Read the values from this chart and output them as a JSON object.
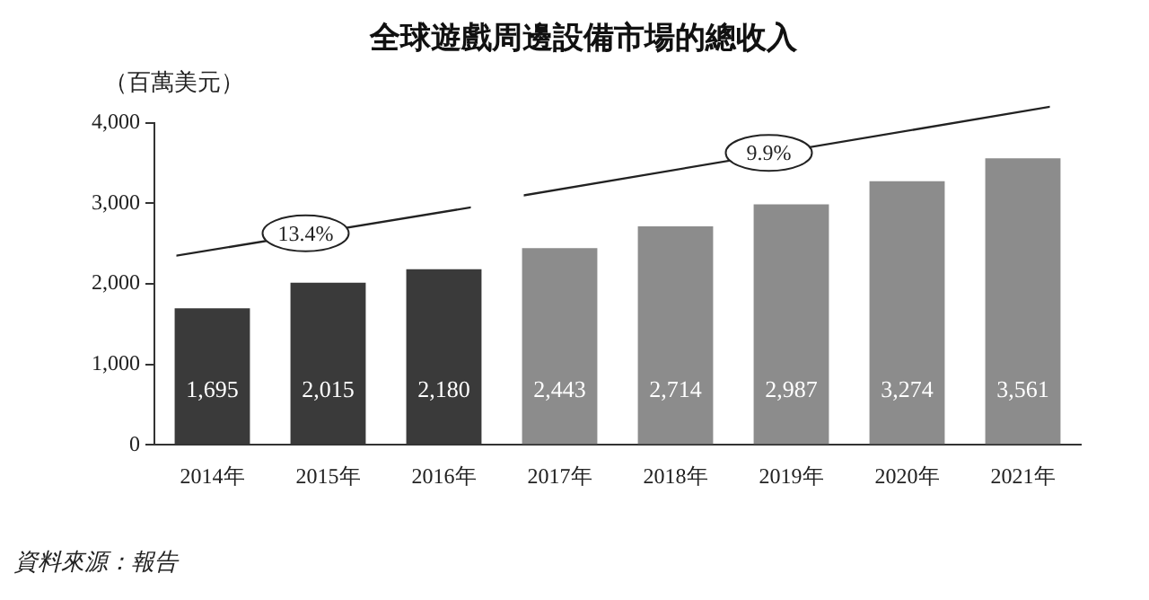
{
  "chart_data": {
    "type": "bar",
    "title": "全球遊戲周邊設備市場的總收入",
    "ylabel": "（百萬美元）",
    "categories": [
      "2014年",
      "2015年",
      "2016年",
      "2017年",
      "2018年",
      "2019年",
      "2020年",
      "2021年"
    ],
    "values": [
      1695,
      2015,
      2180,
      2443,
      2714,
      2987,
      3274,
      3561
    ],
    "colors": [
      "#3a3a3a",
      "#3a3a3a",
      "#3a3a3a",
      "#8c8c8c",
      "#8c8c8c",
      "#8c8c8c",
      "#8c8c8c",
      "#8c8c8c"
    ],
    "value_labels": [
      "1,695",
      "2,015",
      "2,180",
      "2,443",
      "2,714",
      "2,987",
      "3,274",
      "3,561"
    ],
    "ylim": [
      0,
      4000
    ],
    "yticks": [
      0,
      {
        "value": 1000,
        "label": "1,000"
      },
      {
        "value": 2000,
        "label": "2,000"
      },
      {
        "value": 3000,
        "label": "3,000"
      },
      {
        "value": 4000,
        "label": "4,000"
      }
    ],
    "grid": false,
    "legend": false,
    "annotations": [
      "13.4%",
      "9.9%",
      "資料來源：報告"
    ]
  }
}
